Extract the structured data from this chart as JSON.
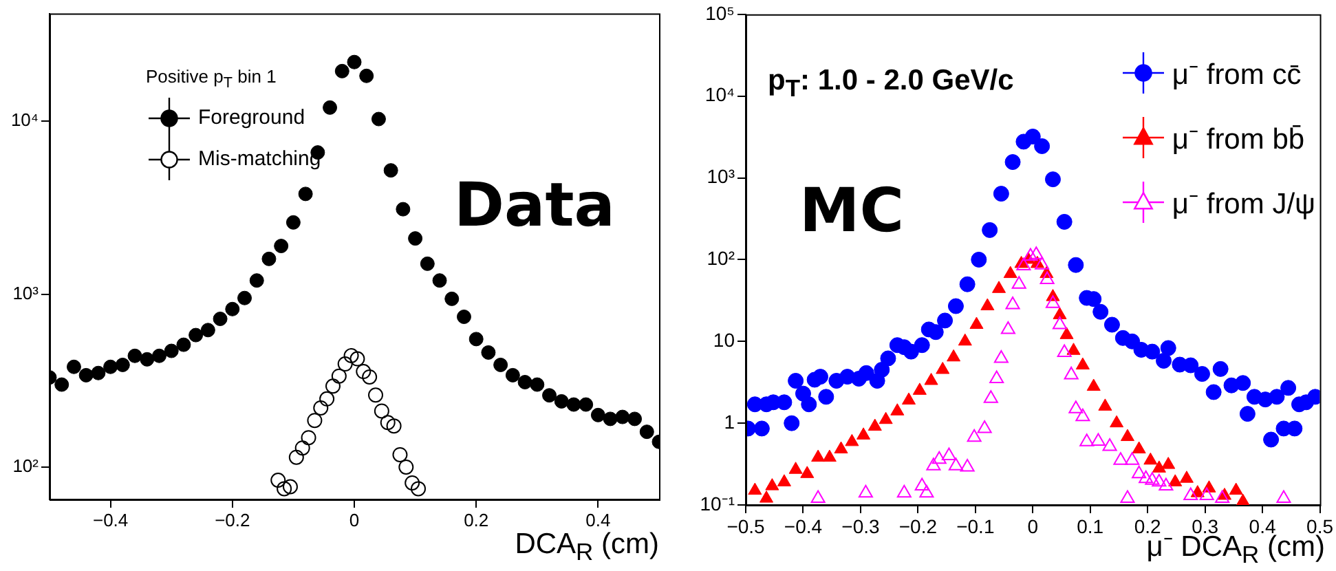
{
  "chart_data": [
    {
      "type": "scatter",
      "xlabel": "DCA$_{R}$ (cm)",
      "legend_title": "Positive p$_{T}$ bin 1",
      "legend": "top left",
      "log": "y",
      "annotations": [
        "Data"
      ],
      "xlim": [
        -0.5,
        0.5
      ],
      "xticks": [
        {
          "value": -0.4,
          "label": "−0.4"
        },
        {
          "value": -0.2,
          "label": "−0.2"
        },
        0,
        0.2,
        0.4
      ],
      "ylim": [
        65,
        42000
      ],
      "yticks": [
        {
          "value": 100,
          "label": "10²"
        },
        {
          "value": 1000,
          "label": "10³"
        },
        {
          "value": 10000,
          "label": "10⁴"
        }
      ],
      "series": [
        {
          "name": "Foreground",
          "color": "#000000",
          "marker": "circle",
          "x": [
            -0.5,
            -0.48,
            -0.46,
            -0.44,
            -0.42,
            -0.4,
            -0.38,
            -0.36,
            -0.34,
            -0.32,
            -0.3,
            -0.28,
            -0.26,
            -0.24,
            -0.22,
            -0.2,
            -0.18,
            -0.16,
            -0.14,
            -0.12,
            -0.1,
            -0.08,
            -0.06,
            -0.04,
            -0.02,
            0,
            0.02,
            0.04,
            0.06,
            0.08,
            0.1,
            0.12,
            0.14,
            0.16,
            0.18,
            0.2,
            0.22,
            0.24,
            0.26,
            0.28,
            0.3,
            0.32,
            0.34,
            0.36,
            0.38,
            0.4,
            0.42,
            0.44,
            0.46,
            0.48,
            0.5
          ],
          "values": [
            330,
            300,
            380,
            340,
            350,
            380,
            390,
            440,
            420,
            440,
            470,
            510,
            580,
            620,
            720,
            820,
            950,
            1200,
            1600,
            1900,
            2600,
            3800,
            6600,
            12000,
            19500,
            22000,
            18300,
            10300,
            5200,
            3100,
            2100,
            1500,
            1200,
            940,
            740,
            550,
            460,
            390,
            340,
            310,
            300,
            260,
            240,
            230,
            230,
            200,
            190,
            195,
            190,
            160,
            140
          ]
        },
        {
          "name": "Mis-matching",
          "color": "#000000",
          "marker": "circle-open",
          "x": [
            -0.125,
            -0.115,
            -0.105,
            -0.095,
            -0.085,
            -0.075,
            -0.065,
            -0.055,
            -0.045,
            -0.035,
            -0.025,
            -0.015,
            -0.005,
            0.005,
            0.015,
            0.025,
            0.035,
            0.045,
            0.055,
            0.065,
            0.075,
            0.085,
            0.095,
            0.105
          ],
          "values": [
            84,
            75,
            77,
            114,
            129,
            148,
            186,
            220,
            248,
            294,
            336,
            395,
            441,
            423,
            357,
            332,
            261,
            211,
            181,
            173,
            118,
            100,
            81,
            75
          ]
        }
      ]
    },
    {
      "type": "scatter",
      "xlabel": "μ⁻ DCA$_{R}$ (cm)",
      "legend": "top right",
      "log": "y",
      "annotations": [
        "p$_{T}$: 1.0 - 2.0 GeV/c",
        "MC"
      ],
      "xlim": [
        -0.5,
        0.5
      ],
      "xticks": [
        {
          "value": -0.5,
          "label": "−0.5"
        },
        {
          "value": -0.4,
          "label": "−0.4"
        },
        {
          "value": -0.3,
          "label": "−0.3"
        },
        {
          "value": -0.2,
          "label": "−0.2"
        },
        {
          "value": -0.1,
          "label": "−0.1"
        },
        0,
        0.1,
        0.2,
        0.3,
        0.4,
        0.5
      ],
      "ylim": [
        0.1,
        100000
      ],
      "yticks": [
        {
          "value": 0.1,
          "label": "10⁻¹"
        },
        1,
        10,
        {
          "value": 100,
          "label": "10²"
        },
        {
          "value": 1000,
          "label": "10³"
        },
        {
          "value": 10000,
          "label": "10⁴"
        },
        {
          "value": 100000,
          "label": "10⁵"
        }
      ],
      "series": [
        {
          "name": "μ⁻ from cc̄",
          "color": "#0000ff",
          "marker": "circle",
          "x": [
            -0.496,
            -0.484,
            -0.472,
            -0.464,
            -0.452,
            -0.433,
            -0.42,
            -0.413,
            -0.4,
            -0.39,
            -0.38,
            -0.37,
            -0.36,
            -0.342,
            -0.323,
            -0.303,
            -0.29,
            -0.271,
            -0.263,
            -0.252,
            -0.236,
            -0.224,
            -0.212,
            -0.193,
            -0.181,
            -0.169,
            -0.153,
            -0.134,
            -0.114,
            -0.094,
            -0.075,
            -0.055,
            -0.035,
            -0.016,
            0,
            0.016,
            0.035,
            0.055,
            0.075,
            0.094,
            0.106,
            0.118,
            0.138,
            0.157,
            0.173,
            0.189,
            0.208,
            0.228,
            0.236,
            0.256,
            0.275,
            0.295,
            0.315,
            0.327,
            0.346,
            0.366,
            0.374,
            0.386,
            0.405,
            0.415,
            0.425,
            0.437,
            0.445,
            0.456,
            0.464,
            0.476,
            0.492
          ],
          "values": [
            0.86,
            1.7,
            0.86,
            1.7,
            1.8,
            1.8,
            1.0,
            3.3,
            2.3,
            1.7,
            3.4,
            3.7,
            2.1,
            3.3,
            3.7,
            3.5,
            4.1,
            3.3,
            4.5,
            6.2,
            9.0,
            8.5,
            7.5,
            9.0,
            14,
            13,
            18,
            27,
            50,
            100,
            230,
            640,
            1560,
            2770,
            3200,
            2440,
            960,
            290,
            86,
            34,
            33,
            23,
            16,
            11,
            10,
            7.9,
            7.5,
            5.8,
            8.3,
            5.2,
            5.1,
            4.0,
            2.4,
            4.6,
            2.9,
            3.1,
            1.3,
            2.1,
            1.95,
            0.63,
            2.1,
            0.86,
            2.7,
            0.86,
            1.7,
            1.8,
            2.1
          ]
        },
        {
          "name": "μ⁻ from bb̄",
          "color": "#ff0000",
          "marker": "triangle",
          "x": [
            -0.484,
            -0.464,
            -0.454,
            -0.433,
            -0.413,
            -0.393,
            -0.374,
            -0.354,
            -0.334,
            -0.315,
            -0.295,
            -0.275,
            -0.256,
            -0.236,
            -0.216,
            -0.197,
            -0.177,
            -0.157,
            -0.138,
            -0.118,
            -0.098,
            -0.079,
            -0.059,
            -0.039,
            -0.02,
            -0.008,
            0.008,
            0.024,
            0.035,
            0.047,
            0.059,
            0.071,
            0.087,
            0.106,
            0.126,
            0.146,
            0.165,
            0.185,
            0.205,
            0.22,
            0.236,
            0.248,
            0.268,
            0.287,
            0.307,
            0.334,
            0.354,
            0.366
          ],
          "values": [
            0.15,
            0.12,
            0.17,
            0.19,
            0.27,
            0.24,
            0.38,
            0.38,
            0.48,
            0.59,
            0.71,
            0.91,
            1.1,
            1.4,
            1.9,
            2.5,
            3.3,
            4.5,
            6.4,
            10,
            16,
            27,
            44,
            67,
            89,
            100,
            89,
            67,
            35,
            21,
            12,
            7.7,
            5.1,
            2.8,
            1.6,
            1.0,
            0.68,
            0.48,
            0.35,
            0.28,
            0.31,
            0.19,
            0.21,
            0.14,
            0.16,
            0.13,
            0.15,
            0.11
          ]
        },
        {
          "name": "μ⁻ from J/ψ",
          "color": "#ff00ff",
          "marker": "triangle-open",
          "x": [
            -0.374,
            -0.291,
            -0.224,
            -0.193,
            -0.185,
            -0.173,
            -0.163,
            -0.146,
            -0.134,
            -0.114,
            -0.102,
            -0.084,
            -0.073,
            -0.063,
            -0.055,
            -0.043,
            -0.035,
            -0.024,
            -0.016,
            -0.004,
            0.006,
            0.016,
            0.025,
            0.035,
            0.047,
            0.055,
            0.067,
            0.075,
            0.087,
            0.094,
            0.114,
            0.134,
            0.153,
            0.165,
            0.173,
            0.185,
            0.197,
            0.208,
            0.22,
            0.232,
            0.275,
            0.303,
            0.33,
            0.437
          ],
          "values": [
            0.12,
            0.14,
            0.14,
            0.17,
            0.14,
            0.3,
            0.36,
            0.4,
            0.3,
            0.29,
            0.67,
            0.86,
            2.0,
            3.5,
            6.2,
            14,
            28,
            50,
            84,
            110,
            115,
            86,
            57,
            29,
            16,
            7.3,
            3.9,
            1.5,
            1.2,
            0.59,
            0.6,
            0.52,
            0.35,
            0.12,
            0.35,
            0.24,
            0.21,
            0.2,
            0.19,
            0.17,
            0.13,
            0.13,
            0.12,
            0.12
          ]
        }
      ]
    }
  ]
}
